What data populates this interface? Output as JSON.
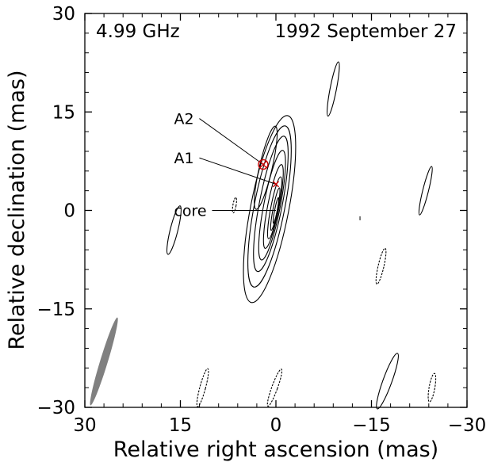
{
  "chart_data": {
    "type": "contour",
    "title_left": "4.99 GHz",
    "title_right": "1992 September 27",
    "xlabel": "Relative right ascension (mas)",
    "ylabel": "Relative declination (mas)",
    "xlim": [
      30,
      -30
    ],
    "ylim": [
      -30,
      30
    ],
    "xticks": [
      30,
      15,
      0,
      -15,
      -30
    ],
    "yticks": [
      30,
      15,
      0,
      -15,
      -30
    ],
    "xtick_labels": [
      "30",
      "15",
      "0",
      "−15",
      "−30"
    ],
    "ytick_labels": [
      "30",
      "15",
      "0",
      "−15",
      "−30"
    ],
    "x_minor_step": 3,
    "y_minor_step": 3,
    "components": [
      {
        "name": "A2",
        "x": 2.0,
        "y": 7.0,
        "label_x": 16.0,
        "label_y": 14.0,
        "marker": "circled-cross"
      },
      {
        "name": "A1",
        "x": 0.0,
        "y": 4.0,
        "label_x": 16.0,
        "label_y": 8.0,
        "marker": "cross"
      },
      {
        "name": "core",
        "x": 0.0,
        "y": 0.0,
        "label_x": 16.0,
        "label_y": 0.0,
        "marker": "none"
      }
    ],
    "contour_color": "#000000",
    "marker_color": "#cc0000",
    "beam_color": "#808080",
    "beam": {
      "x": 27.0,
      "y": -23.0,
      "major": 14.0,
      "minor": 1.2,
      "pa_deg": 17
    }
  }
}
